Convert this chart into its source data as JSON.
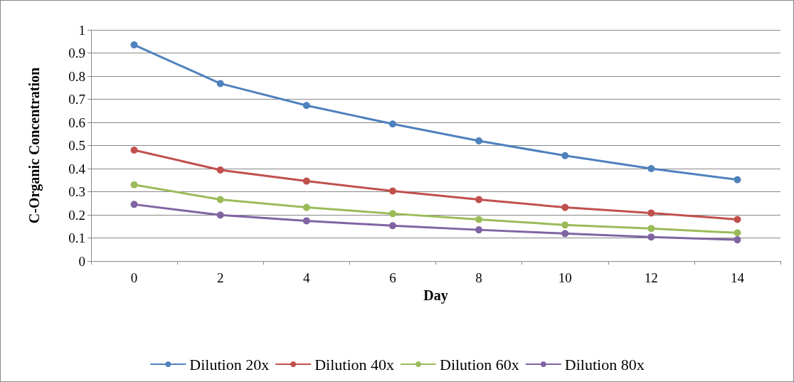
{
  "chart_data": {
    "type": "line",
    "xlabel": "Day",
    "ylabel": "C-Organic Concentration",
    "categories": [
      "0",
      "2",
      "4",
      "6",
      "8",
      "10",
      "12",
      "14"
    ],
    "series": [
      {
        "name": "Dilution 20x",
        "color": "#4f81bd",
        "values": [
          0.935,
          0.768,
          0.673,
          0.593,
          0.52,
          0.456,
          0.4,
          0.352
        ]
      },
      {
        "name": "Dilution 40x",
        "color": "#c0504d",
        "values": [
          0.48,
          0.394,
          0.346,
          0.303,
          0.266,
          0.232,
          0.208,
          0.18
        ]
      },
      {
        "name": "Dilution 60x",
        "color": "#9bbb59",
        "values": [
          0.33,
          0.266,
          0.232,
          0.205,
          0.18,
          0.156,
          0.141,
          0.122
        ]
      },
      {
        "name": "Dilution 80x",
        "color": "#8064a2",
        "values": [
          0.245,
          0.199,
          0.174,
          0.153,
          0.135,
          0.119,
          0.104,
          0.092
        ]
      }
    ],
    "ylim": [
      0,
      1
    ],
    "yticks": [
      0,
      0.1,
      0.2,
      0.3,
      0.4,
      0.5,
      0.6,
      0.7,
      0.8,
      0.9,
      1
    ],
    "grid": "y",
    "legend": "bottom",
    "marker": "circle",
    "line_style": "solid"
  }
}
